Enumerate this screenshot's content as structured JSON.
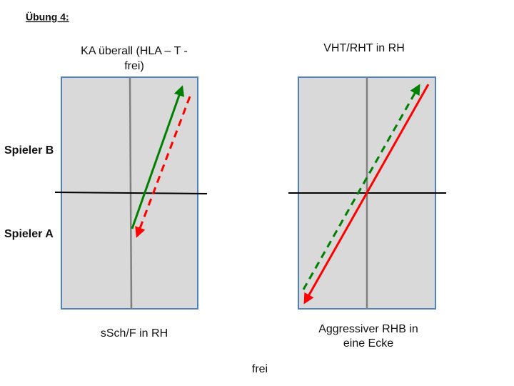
{
  "header": {
    "title": "Übung 4:"
  },
  "players": [
    "Spieler B",
    "Spieler A"
  ],
  "panels": [
    {
      "top_lines": [
        "KA überall (HLA – T -",
        "frei)"
      ],
      "bottom_lines": [
        "sSch/F in RH"
      ]
    },
    {
      "top_lines": [
        "VHT/RHT in RH"
      ],
      "bottom_lines": [
        "Aggressiver RHB in",
        "eine Ecke"
      ]
    }
  ],
  "footer": "frei"
}
